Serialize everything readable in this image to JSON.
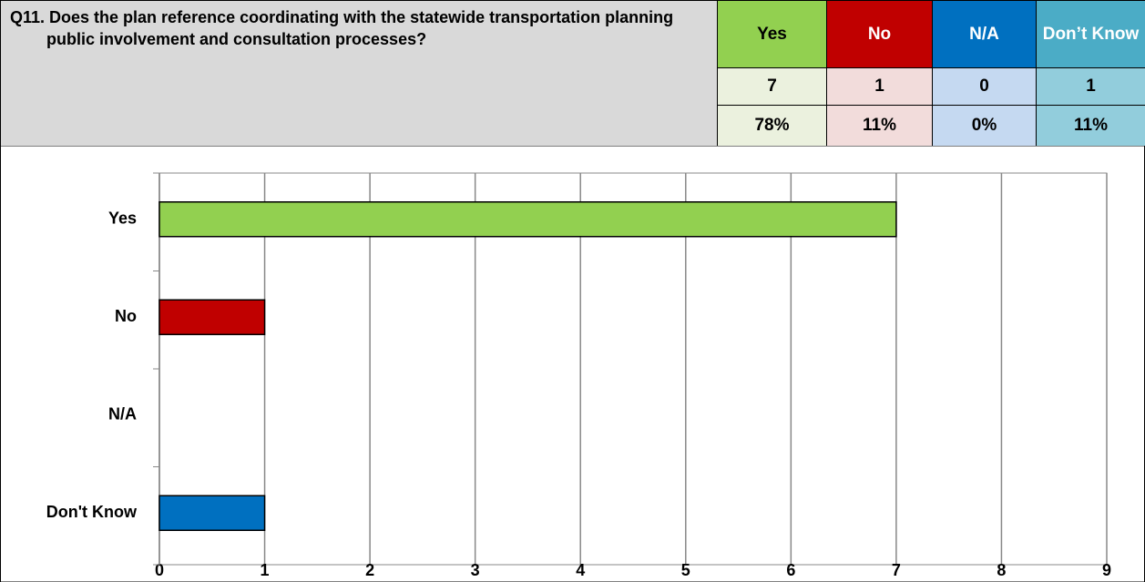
{
  "question": "Q11.  Does the plan reference coordinating with the statewide transportation planning public involvement and consultation processes?",
  "table": {
    "headers": [
      "Yes",
      "No",
      "N/A",
      "Don’t Know"
    ],
    "counts": [
      "7",
      "1",
      "0",
      "1"
    ],
    "percents": [
      "78%",
      "11%",
      "0%",
      "11%"
    ]
  },
  "chart_data": {
    "type": "bar",
    "orientation": "horizontal",
    "categories": [
      "Yes",
      "No",
      "N/A",
      "Don't Know"
    ],
    "values": [
      7,
      1,
      0,
      1
    ],
    "colors": [
      "#92d050",
      "#c00000",
      "#0070c0",
      "#0070c0"
    ],
    "xlim": [
      0,
      9
    ],
    "xticks": [
      0,
      1,
      2,
      3,
      4,
      5,
      6,
      7,
      8,
      9
    ],
    "grid": true
  }
}
